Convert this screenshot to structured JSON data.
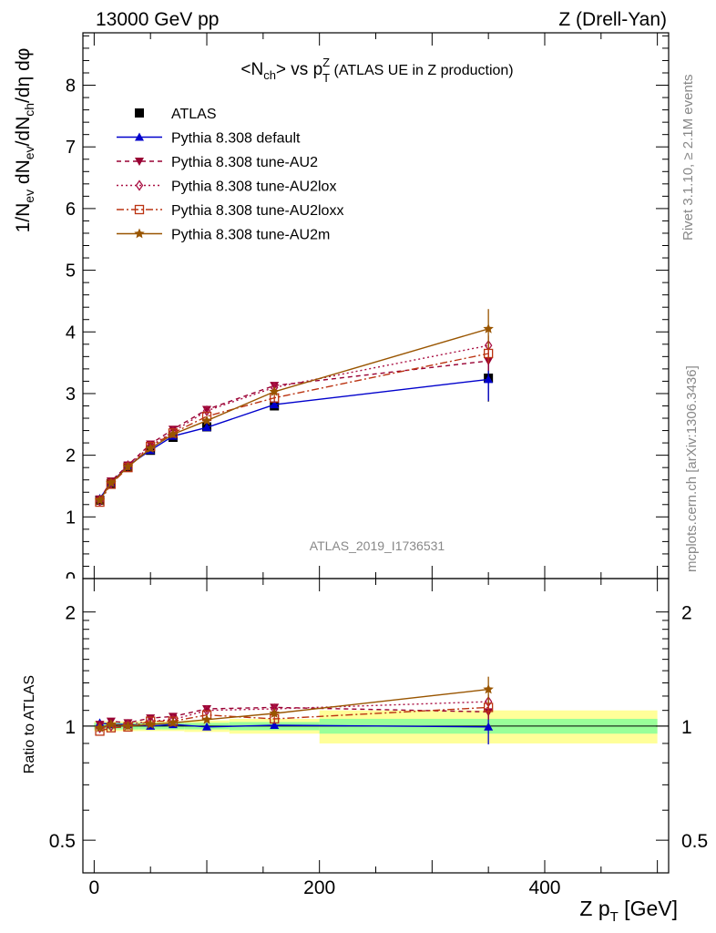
{
  "header": {
    "left": "13000 GeV pp",
    "right": "Z (Drell-Yan)"
  },
  "side": {
    "rivet": "Rivet 3.1.10, ≥ 2.1M events",
    "mcplots": "mcplots.cern.ch [arXiv:1306.3436]"
  },
  "analysis_id": "ATLAS_2019_I1736531",
  "colors": {
    "data": "#000000",
    "default": "#0000cc",
    "au2": "#990033",
    "au2lox": "#aa1144",
    "au2loxx": "#bb3311",
    "au2m": "#995500",
    "band_inner": "#99ff99",
    "band_outer": "#ffff99"
  },
  "chart_data": [
    {
      "type": "line",
      "title": "<Nch> vs pTZ (ATLAS UE in Z production)",
      "title_parts": {
        "lt": "<N",
        "ch": "ch",
        "gt": "> vs p",
        "sup": "Z",
        "sub": "T",
        "rest": " (ATLAS UE in Z production)"
      },
      "ylabel": "1/Nev dNev/dNch/dη dφ",
      "ylabel_parts": {
        "a": "1/N",
        "b": "ev",
        "c": " dN",
        "d": "ev",
        "e": "/dN",
        "f": "ch",
        "g": "/dη dφ"
      },
      "xlim": [
        -10,
        510
      ],
      "ylim": [
        0,
        8.85
      ],
      "yticks": [
        1,
        2,
        3,
        4,
        5,
        6,
        7,
        8
      ],
      "ytick_labels": [
        "1",
        "2",
        "3",
        "4",
        "5",
        "6",
        "7",
        "8"
      ],
      "legend": "top-left",
      "x": [
        5,
        15,
        30,
        50,
        70,
        100,
        160,
        350
      ],
      "series": [
        {
          "key": "data",
          "name": "ATLAS",
          "marker": "square",
          "dash": "none",
          "values": [
            1.27,
            1.54,
            1.81,
            2.08,
            2.29,
            2.46,
            2.8,
            3.25
          ],
          "err": [
            0.03,
            0.03,
            0.03,
            0.04,
            0.04,
            0.05,
            0.07,
            0.38
          ]
        },
        {
          "key": "default",
          "name": "Pythia 8.308 default",
          "marker": "triangle-up",
          "dash": "none",
          "values": [
            1.3,
            1.55,
            1.83,
            2.08,
            2.31,
            2.45,
            2.82,
            3.23
          ],
          "err": [
            0,
            0,
            0,
            0,
            0,
            0,
            0.04,
            0.35
          ]
        },
        {
          "key": "au2",
          "name": "Pythia 8.308 tune-AU2",
          "marker": "triangle-down",
          "dash": "5,4",
          "values": [
            1.29,
            1.58,
            1.84,
            2.18,
            2.42,
            2.74,
            3.13,
            3.53
          ],
          "err": [
            0,
            0,
            0,
            0,
            0,
            0,
            0.05,
            0.16
          ]
        },
        {
          "key": "au2lox",
          "name": "Pythia 8.308 tune-AU2lox",
          "marker": "diamond-open",
          "dash": "2,3",
          "values": [
            1.26,
            1.55,
            1.83,
            2.15,
            2.38,
            2.72,
            3.1,
            3.78
          ],
          "err": [
            0,
            0,
            0,
            0,
            0,
            0,
            0.05,
            0.16
          ]
        },
        {
          "key": "au2loxx",
          "name": "Pythia 8.308 tune-AU2loxx",
          "marker": "square-open",
          "dash": "8,3,2,3",
          "values": [
            1.24,
            1.53,
            1.8,
            2.14,
            2.36,
            2.63,
            2.93,
            3.65
          ],
          "err": [
            0,
            0,
            0,
            0,
            0,
            0,
            0.05,
            0.16
          ]
        },
        {
          "key": "au2m",
          "name": "Pythia 8.308 tune-AU2m",
          "marker": "star",
          "dash": "none",
          "values": [
            1.27,
            1.55,
            1.81,
            2.11,
            2.34,
            2.56,
            3.03,
            4.05
          ],
          "err": [
            0,
            0,
            0,
            0,
            0,
            0,
            0.05,
            0.32
          ]
        }
      ]
    },
    {
      "type": "line",
      "ylabel": "Ratio to ATLAS",
      "xlabel": "Z pT [GeV]",
      "xlabel_parts": {
        "a": "Z p",
        "b": "T",
        "c": " [GeV]"
      },
      "xlim": [
        -10,
        510
      ],
      "ylim": [
        0.41,
        2.45
      ],
      "yscale": "log",
      "yticks": [
        0.5,
        1,
        2
      ],
      "ytick_labels": [
        "0.5",
        "1",
        "2"
      ],
      "xticks": [
        0,
        200,
        400
      ],
      "xtick_labels": [
        "0",
        "200",
        "400"
      ],
      "bands": {
        "edges": [
          0,
          10,
          20,
          40,
          60,
          80,
          120,
          200,
          500
        ],
        "inner": [
          0.02,
          0.02,
          0.02,
          0.02,
          0.02,
          0.02,
          0.025,
          0.045
        ],
        "outer": [
          0.03,
          0.03,
          0.03,
          0.03,
          0.03,
          0.035,
          0.045,
          0.1
        ]
      },
      "x": [
        5,
        15,
        30,
        50,
        70,
        100,
        160,
        350
      ],
      "series": [
        {
          "key": "default",
          "values": [
            1.02,
            1.01,
            1.01,
            1.0,
            1.01,
            0.995,
            1.005,
            0.995
          ],
          "err": [
            0,
            0,
            0,
            0,
            0,
            0,
            0.02,
            0.1
          ]
        },
        {
          "key": "au2",
          "values": [
            1.01,
            1.03,
            1.02,
            1.05,
            1.06,
            1.11,
            1.12,
            1.09
          ],
          "err": [
            0,
            0,
            0,
            0,
            0,
            0,
            0.02,
            0.05
          ]
        },
        {
          "key": "au2lox",
          "values": [
            0.99,
            1.0,
            1.01,
            1.03,
            1.04,
            1.1,
            1.11,
            1.16
          ],
          "err": [
            0,
            0,
            0,
            0,
            0,
            0,
            0.02,
            0.05
          ]
        },
        {
          "key": "au2loxx",
          "values": [
            0.97,
            0.99,
            0.995,
            1.03,
            1.03,
            1.07,
            1.045,
            1.12
          ],
          "err": [
            0,
            0,
            0,
            0,
            0,
            0,
            0.02,
            0.05
          ]
        },
        {
          "key": "au2m",
          "values": [
            0.99,
            1.01,
            1.0,
            1.01,
            1.02,
            1.04,
            1.08,
            1.25
          ],
          "err": [
            0,
            0,
            0,
            0,
            0,
            0,
            0.02,
            0.1
          ]
        }
      ]
    }
  ]
}
